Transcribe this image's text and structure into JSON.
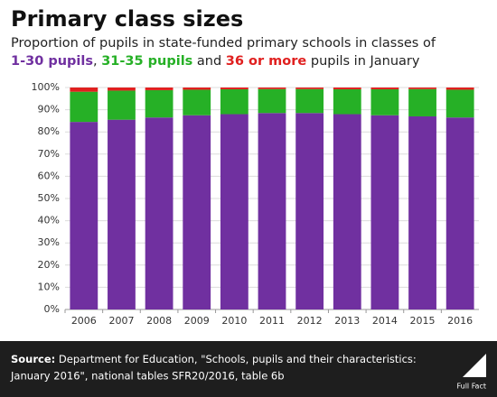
{
  "chart_data": {
    "type": "stacked_bar",
    "title": "Primary class sizes",
    "subtitle_line1": "Proportion of pupils in state-funded primary schools in classes of",
    "subtitle_parts": [
      "1-30 pupils",
      ", ",
      "31-35 pupils",
      " and ",
      "36 or more",
      " pupils in January"
    ],
    "categories": [
      "2006",
      "2007",
      "2008",
      "2009",
      "2010",
      "2011",
      "2012",
      "2013",
      "2014",
      "2015",
      "2016"
    ],
    "series": [
      {
        "name": "1-30 pupils",
        "color": "#7030a0",
        "values": [
          84.5,
          85.5,
          86.5,
          87.5,
          88,
          88.5,
          88.5,
          88,
          87.5,
          87,
          86.5
        ]
      },
      {
        "name": "31-35 pupils",
        "color": "#26b026",
        "values": [
          13.6,
          13.1,
          12.3,
          11.5,
          11.2,
          10.8,
          10.8,
          11.2,
          11.7,
          12.3,
          12.5
        ]
      },
      {
        "name": "36 or more",
        "color": "#e0201f",
        "values": [
          1.9,
          1.4,
          1.2,
          1.0,
          0.8,
          0.7,
          0.7,
          0.8,
          0.8,
          0.7,
          1.0
        ]
      }
    ],
    "ylim": [
      0,
      100
    ],
    "yticks": [
      {
        "value": 0,
        "label": "0%"
      },
      {
        "value": 10,
        "label": "10%"
      },
      {
        "value": 20,
        "label": "20%"
      },
      {
        "value": 30,
        "label": "30%"
      },
      {
        "value": 40,
        "label": "40%"
      },
      {
        "value": 50,
        "label": "50%"
      },
      {
        "value": 60,
        "label": "60%"
      },
      {
        "value": 70,
        "label": "70%"
      },
      {
        "value": 80,
        "label": "80%"
      },
      {
        "value": 90,
        "label": "90%"
      },
      {
        "value": 100,
        "label": "100%"
      }
    ],
    "grid": true,
    "source_label": "Source:",
    "source_lines": [
      " Department for Education, \"Schools, pupils and their characteristics:",
      "January 2016\", national tables SFR20/2016, table 6b"
    ],
    "logo": "Full Fact"
  }
}
